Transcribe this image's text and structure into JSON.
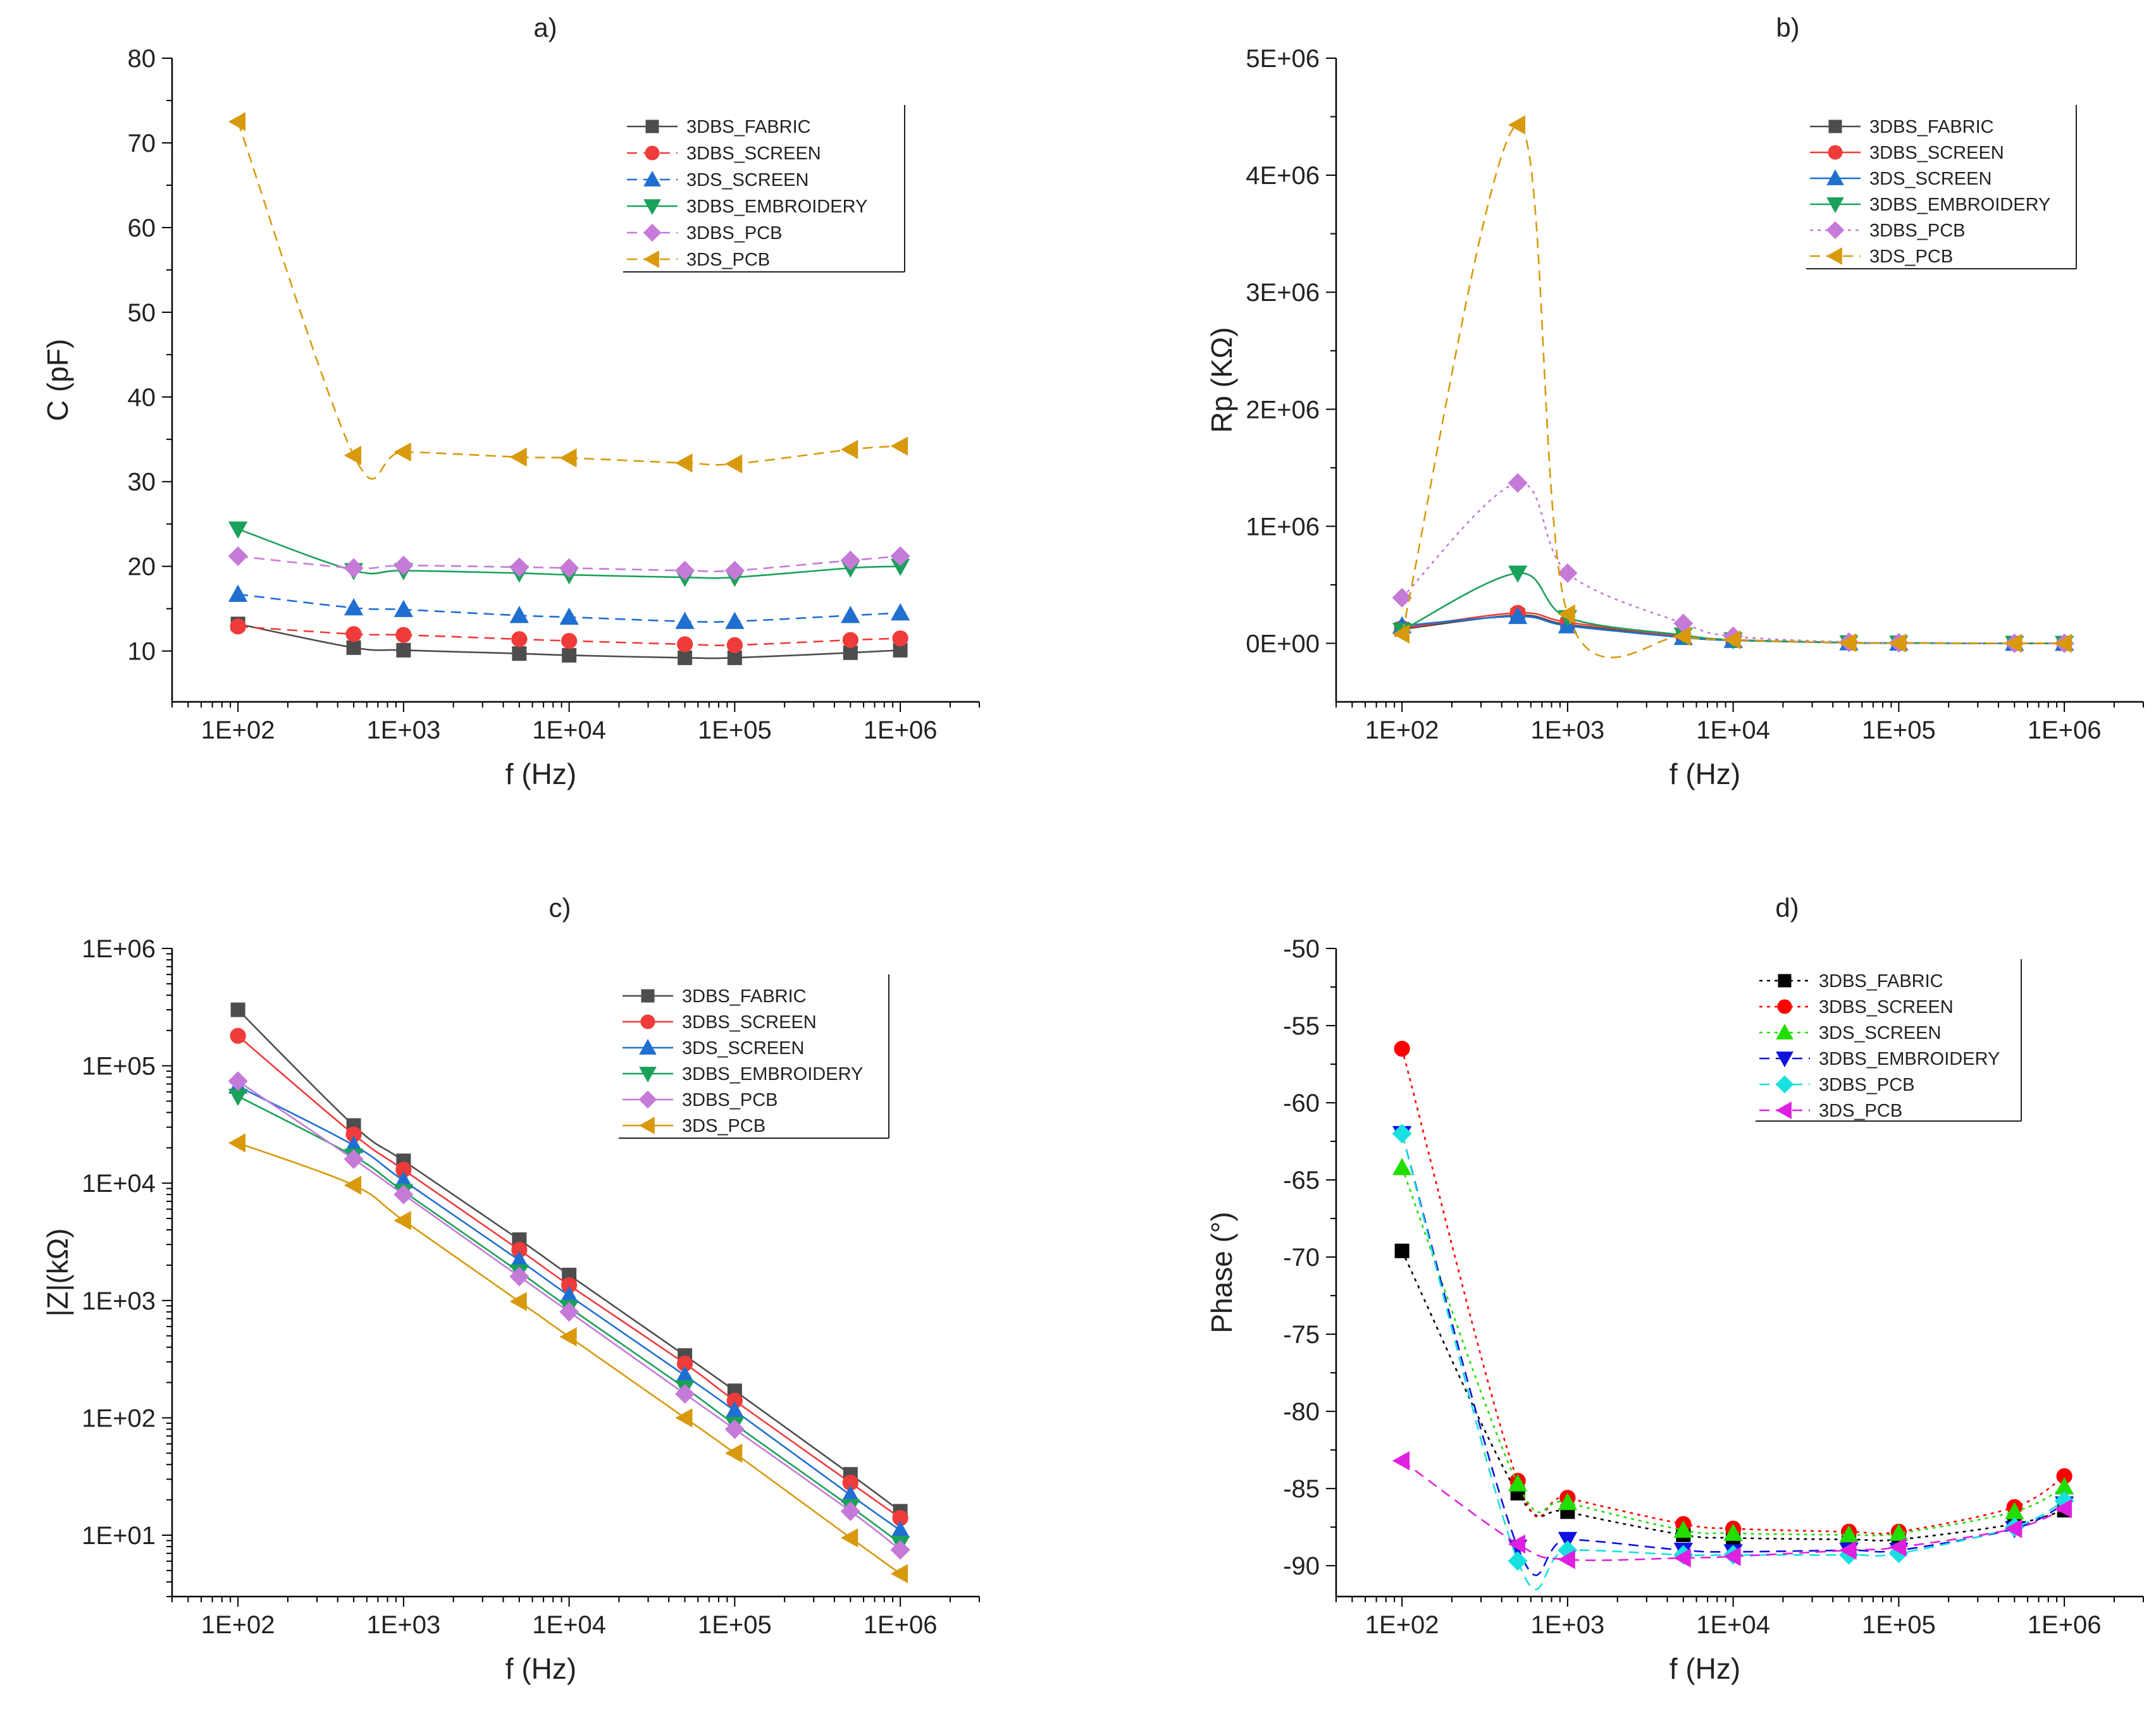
{
  "figure": {
    "panels": [
      "a",
      "b",
      "c",
      "d"
    ]
  },
  "chart_data": [
    {
      "id": "a",
      "type": "line",
      "title": "a)",
      "xlabel": "f (Hz)",
      "ylabel": "C (pF)",
      "xscale": "log",
      "yscale": "linear",
      "xlim": [
        40,
        3000000
      ],
      "ylim": [
        4,
        80
      ],
      "xticks": [
        100,
        1000,
        10000,
        100000,
        1000000
      ],
      "xtick_labels": [
        "1E+02",
        "1E+03",
        "1E+04",
        "1E+05",
        "1E+06"
      ],
      "yticks": [
        10,
        20,
        30,
        40,
        50,
        60,
        70,
        80
      ],
      "ytick_labels": [
        "10",
        "20",
        "30",
        "40",
        "50",
        "60",
        "70",
        "80"
      ],
      "legend_position": "top-right",
      "x": [
        100,
        500,
        1000,
        5000,
        10000,
        50000,
        100000,
        500000,
        1000000
      ],
      "series": [
        {
          "name": "3DBS_FABRIC",
          "color": "#4d4d4d",
          "marker": "square",
          "dash": "solid",
          "values": [
            13.2,
            10.4,
            10.1,
            9.7,
            9.5,
            9.2,
            9.2,
            9.8,
            10.1
          ]
        },
        {
          "name": "3DBS_SCREEN",
          "color": "#f03b3b",
          "marker": "circle",
          "dash": "dash",
          "values": [
            12.9,
            12.0,
            11.9,
            11.4,
            11.2,
            10.8,
            10.7,
            11.3,
            11.5
          ]
        },
        {
          "name": "3DS_SCREEN",
          "color": "#1f6fd0",
          "marker": "triangle-up",
          "dash": "dash",
          "values": [
            16.7,
            15.1,
            14.9,
            14.2,
            14.0,
            13.5,
            13.5,
            14.2,
            14.5
          ]
        },
        {
          "name": "3DBS_EMBROIDERY",
          "color": "#1aa15a",
          "marker": "triangle-down",
          "dash": "solid",
          "values": [
            24.4,
            19.5,
            19.5,
            19.2,
            19.0,
            18.7,
            18.7,
            19.8,
            20.0
          ]
        },
        {
          "name": "3DBS_PCB",
          "color": "#c57ad8",
          "marker": "diamond",
          "dash": "dash",
          "values": [
            21.2,
            19.8,
            20.1,
            19.9,
            19.8,
            19.5,
            19.5,
            20.7,
            21.2
          ]
        },
        {
          "name": "3DS_PCB",
          "color": "#d89a0c",
          "marker": "triangle-left",
          "dash": "dash",
          "values": [
            72.5,
            33.1,
            33.5,
            32.9,
            32.8,
            32.2,
            32.1,
            33.8,
            34.2
          ]
        }
      ]
    },
    {
      "id": "b",
      "type": "line",
      "title": "b)",
      "xlabel": "f (Hz)",
      "ylabel": "Rp (KΩ)",
      "xscale": "log",
      "yscale": "linear",
      "xlim": [
        40,
        3000000
      ],
      "ylim": [
        -500000,
        5000000
      ],
      "xticks": [
        100,
        1000,
        10000,
        100000,
        1000000
      ],
      "xtick_labels": [
        "1E+02",
        "1E+03",
        "1E+04",
        "1E+05",
        "1E+06"
      ],
      "yticks": [
        0,
        1000000,
        2000000,
        3000000,
        4000000,
        5000000
      ],
      "ytick_labels": [
        "0E+00",
        "1E+06",
        "2E+06",
        "3E+06",
        "4E+06",
        "5E+06"
      ],
      "legend_position": "top-right",
      "x": [
        100,
        500,
        1000,
        5000,
        10000,
        50000,
        100000,
        500000,
        1000000
      ],
      "series": [
        {
          "name": "3DBS_FABRIC",
          "color": "#4d4d4d",
          "marker": "square",
          "dash": "solid",
          "values": [
            120000,
            240000,
            160000,
            60000,
            30000,
            5000,
            2000,
            0,
            0
          ]
        },
        {
          "name": "3DBS_SCREEN",
          "color": "#f03b3b",
          "marker": "circle",
          "dash": "solid",
          "values": [
            130000,
            260000,
            180000,
            60000,
            30000,
            5000,
            2000,
            0,
            0
          ]
        },
        {
          "name": "3DS_SCREEN",
          "color": "#1f6fd0",
          "marker": "triangle-up",
          "dash": "solid",
          "values": [
            150000,
            230000,
            150000,
            50000,
            25000,
            5000,
            2000,
            0,
            0
          ]
        },
        {
          "name": "3DBS_EMBROIDERY",
          "color": "#1aa15a",
          "marker": "triangle-down",
          "dash": "solid",
          "values": [
            110000,
            600000,
            220000,
            70000,
            30000,
            5000,
            2000,
            0,
            0
          ]
        },
        {
          "name": "3DBS_PCB",
          "color": "#c57ad8",
          "marker": "diamond",
          "dash": "dot",
          "values": [
            390000,
            1370000,
            600000,
            170000,
            60000,
            10000,
            5000,
            0,
            0
          ]
        },
        {
          "name": "3DS_PCB",
          "color": "#d89a0c",
          "marker": "triangle-left",
          "dash": "dash",
          "values": [
            80000,
            4430000,
            250000,
            60000,
            30000,
            5000,
            2000,
            0,
            0
          ]
        }
      ]
    },
    {
      "id": "c",
      "type": "line",
      "title": "c)",
      "xlabel": "f (Hz)",
      "ylabel": "|Z|(kΩ)",
      "xscale": "log",
      "yscale": "log",
      "xlim": [
        40,
        3000000
      ],
      "ylim": [
        3,
        1000000
      ],
      "xticks": [
        100,
        1000,
        10000,
        100000,
        1000000
      ],
      "xtick_labels": [
        "1E+02",
        "1E+03",
        "1E+04",
        "1E+05",
        "1E+06"
      ],
      "yticks": [
        10,
        100,
        1000,
        10000,
        100000,
        1000000
      ],
      "ytick_labels": [
        "1E+01",
        "1E+02",
        "1E+03",
        "1E+04",
        "1E+05",
        "1E+06"
      ],
      "legend_position": "top-right",
      "x": [
        100,
        500,
        1000,
        5000,
        10000,
        50000,
        100000,
        500000,
        1000000
      ],
      "series": [
        {
          "name": "3DBS_FABRIC",
          "color": "#4d4d4d",
          "marker": "square",
          "dash": "solid",
          "values": [
            300000,
            31000,
            15500,
            3300,
            1650,
            340,
            170,
            33,
            16
          ]
        },
        {
          "name": "3DBS_SCREEN",
          "color": "#f03b3b",
          "marker": "circle",
          "dash": "solid",
          "values": [
            180000,
            26000,
            13000,
            2700,
            1350,
            290,
            140,
            28,
            14
          ]
        },
        {
          "name": "3DS_SCREEN",
          "color": "#1f6fd0",
          "marker": "triangle-up",
          "dash": "solid",
          "values": [
            67000,
            21000,
            10500,
            2200,
            1100,
            230,
            115,
            22,
            11
          ]
        },
        {
          "name": "3DBS_EMBROIDERY",
          "color": "#1aa15a",
          "marker": "triangle-down",
          "dash": "solid",
          "values": [
            55000,
            17000,
            8500,
            1750,
            870,
            180,
            88,
            17.5,
            8.5
          ]
        },
        {
          "name": "3DBS_PCB",
          "color": "#c57ad8",
          "marker": "diamond",
          "dash": "solid",
          "values": [
            74000,
            16000,
            8000,
            1600,
            800,
            160,
            80,
            16,
            7.5
          ]
        },
        {
          "name": "3DS_PCB",
          "color": "#d89a0c",
          "marker": "triangle-left",
          "dash": "solid",
          "values": [
            22000,
            9600,
            4800,
            980,
            490,
            100,
            50,
            9.5,
            4.7
          ]
        }
      ]
    },
    {
      "id": "d",
      "type": "line",
      "title": "d)",
      "xlabel": "f (Hz)",
      "ylabel": "Phase (°)",
      "xscale": "log",
      "yscale": "linear",
      "xlim": [
        40,
        3000000
      ],
      "ylim": [
        -92,
        -50
      ],
      "xticks": [
        100,
        1000,
        10000,
        100000,
        1000000
      ],
      "xtick_labels": [
        "1E+02",
        "1E+03",
        "1E+04",
        "1E+05",
        "1E+06"
      ],
      "yticks": [
        -90,
        -85,
        -80,
        -75,
        -70,
        -65,
        -60,
        -55,
        -50
      ],
      "ytick_labels": [
        "-90",
        "-85",
        "-80",
        "-75",
        "-70",
        "-65",
        "-60",
        "-55",
        "-50"
      ],
      "legend_position": "top-right",
      "x": [
        100,
        500,
        1000,
        5000,
        10000,
        50000,
        100000,
        500000,
        1000000
      ],
      "series": [
        {
          "name": "3DBS_FABRIC",
          "color": "#000000",
          "marker": "square",
          "dash": "dot",
          "values": [
            -69.6,
            -85.3,
            -86.5,
            -88.0,
            -88.2,
            -88.3,
            -88.3,
            -87.3,
            -86.4
          ]
        },
        {
          "name": "3DBS_SCREEN",
          "color": "#ff0000",
          "marker": "circle",
          "dash": "dot",
          "values": [
            -56.5,
            -84.5,
            -85.6,
            -87.3,
            -87.6,
            -87.8,
            -87.8,
            -86.2,
            -84.2
          ]
        },
        {
          "name": "3DS_SCREEN",
          "color": "#22dd00",
          "marker": "triangle-up",
          "dash": "dot",
          "values": [
            -64.2,
            -84.7,
            -85.9,
            -87.7,
            -87.9,
            -88.0,
            -87.9,
            -86.5,
            -84.9
          ]
        },
        {
          "name": "3DBS_EMBROIDERY",
          "color": "#1010e0",
          "marker": "triangle-down",
          "dash": "dash",
          "values": [
            -62.0,
            -88.8,
            -88.3,
            -89.0,
            -89.1,
            -89.0,
            -89.0,
            -87.6,
            -86.0
          ]
        },
        {
          "name": "3DBS_PCB",
          "color": "#19e0e0",
          "marker": "diamond",
          "dash": "dash",
          "values": [
            -62.0,
            -89.7,
            -89.0,
            -89.3,
            -89.3,
            -89.3,
            -89.2,
            -87.5,
            -85.8
          ]
        },
        {
          "name": "3DS_PCB",
          "color": "#e020e0",
          "marker": "triangle-left",
          "dash": "dash",
          "values": [
            -83.2,
            -88.6,
            -89.6,
            -89.5,
            -89.4,
            -89.0,
            -88.8,
            -87.6,
            -86.3
          ]
        }
      ]
    }
  ]
}
